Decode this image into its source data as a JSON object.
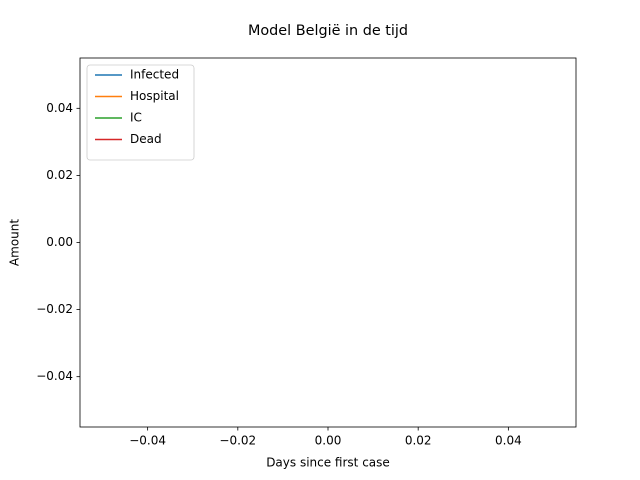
{
  "chart_data": {
    "type": "line",
    "title": "Model België in de tijd",
    "x_label": "Days since first case",
    "y_label": "Amount",
    "x": [],
    "series": [
      {
        "name": "Infected",
        "color": "#1f77b4",
        "values": []
      },
      {
        "name": "Hospital",
        "color": "#ff7f0e",
        "values": []
      },
      {
        "name": "IC",
        "color": "#2ca02c",
        "values": []
      },
      {
        "name": "Dead",
        "color": "#d62728",
        "values": []
      }
    ],
    "xlim": [
      -0.055,
      0.055
    ],
    "xticks": [
      {
        "value": -0.04,
        "label": "−0.04"
      },
      {
        "value": -0.02,
        "label": "−0.02"
      },
      {
        "value": 0,
        "label": "0.00"
      },
      0.02,
      0.04
    ],
    "ylim": [
      -0.055,
      0.055
    ],
    "yticks": [
      {
        "value": -0.04,
        "label": "−0.04"
      },
      {
        "value": -0.02,
        "label": "−0.02"
      },
      {
        "value": 0,
        "label": "0.00"
      },
      0.02,
      0.04
    ],
    "legend": "upper left",
    "grid": false
  }
}
